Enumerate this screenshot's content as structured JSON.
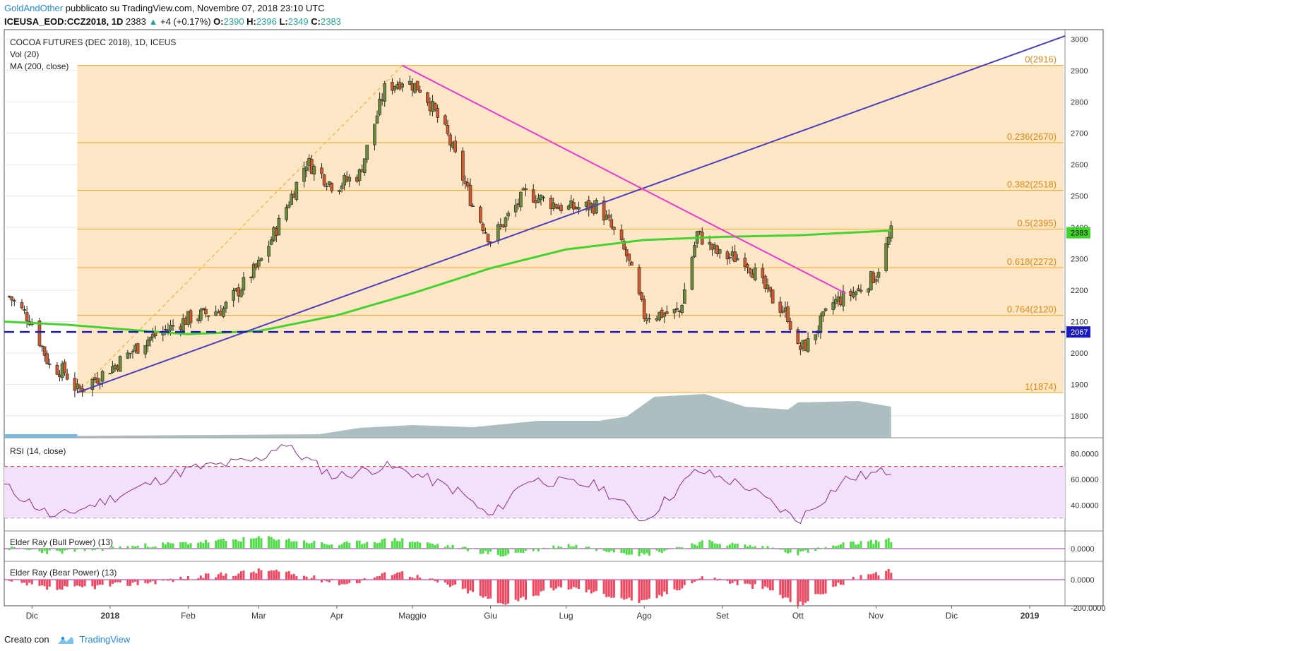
{
  "header": {
    "author": "GoldAndOther",
    "published_text": "pubblicato su TradingView.com, Novembre 07, 2018 23:10 UTC",
    "ticker": "ICEUSA_EOD:CCZ2018, 1D",
    "last": "2383",
    "change": "+4 (+0.17%)",
    "ohlc": {
      "o": "2390",
      "h": "2396",
      "l": "2349",
      "c": "2383"
    },
    "ohlc_labels": {
      "o": "O:",
      "h": "H:",
      "l": "L:",
      "c": "C:"
    }
  },
  "legend": {
    "title": "COCOA FUTURES (DEC 2018), 1D, ICEUS",
    "vol": "Vol (20)",
    "ma": "MA (200, close)"
  },
  "price_axis": {
    "ticks": [
      "3000",
      "2900",
      "2800",
      "2700",
      "2600",
      "2500",
      "2400",
      "2300",
      "2200",
      "2100",
      "2000",
      "1900",
      "1800"
    ],
    "last_tag": "2383",
    "support_tag": "2067"
  },
  "fibonacci": [
    {
      "label": "0(2916)",
      "value": 2916
    },
    {
      "label": "0.236(2670)",
      "value": 2670
    },
    {
      "label": "0.382(2518)",
      "value": 2518
    },
    {
      "label": "0.5(2395)",
      "value": 2395
    },
    {
      "label": "0.618(2272)",
      "value": 2272
    },
    {
      "label": "0.764(2120)",
      "value": 2120
    },
    {
      "label": "1(1874)",
      "value": 1874
    }
  ],
  "rsi_panel": {
    "title": "RSI (14, close)",
    "ticks": [
      "80.0000",
      "60.0000",
      "40.0000"
    ]
  },
  "bull_panel": {
    "title": "Elder Ray (Bull Power) (13)",
    "ticks": [
      "0.0000"
    ]
  },
  "bear_panel": {
    "title": "Elder Ray (Bear Power) (13)",
    "ticks": [
      "0.0000",
      "-200.0000"
    ]
  },
  "time_axis": {
    "labels": [
      "Dic",
      "2018",
      "Feb",
      "Mar",
      "Apr",
      "Maggio",
      "Giu",
      "Lug",
      "Ago",
      "Set",
      "Ott",
      "Nov",
      "Dic",
      "2019"
    ]
  },
  "footer": {
    "created_with": "Creato con",
    "brand": "TradingView"
  },
  "colors": {
    "fib_fill": "#fde3c0",
    "fib_line": "#f5a623",
    "ma_line": "#43d32f",
    "trend_up": "#4b3fbf",
    "trend_down": "#ee37d6",
    "support": "#1a1abf",
    "candle_up": "#6b8c3a",
    "candle_down": "#d2592c",
    "volume": "#9fb3b5",
    "rsi_line": "#8a2d8a",
    "rsi_band": "#f3e1fb",
    "bull_bar": "#4ddc45",
    "bear_bar": "#f2455e"
  },
  "chart_data": {
    "type": "candlestick",
    "title": "COCOA FUTURES (DEC 2018), 1D, ICEUS",
    "ylim": [
      1730,
      3030
    ],
    "x_range": [
      "2017-11-20",
      "2019-01-15"
    ],
    "support_level": 2067,
    "close_series_anchors": [
      [
        "2017-11-22",
        2180
      ],
      [
        "2017-12-01",
        2100
      ],
      [
        "2017-12-08",
        1960
      ],
      [
        "2017-12-14",
        1940
      ],
      [
        "2017-12-19",
        1880
      ],
      [
        "2018-01-02",
        1955
      ],
      [
        "2018-01-15",
        2040
      ],
      [
        "2018-02-01",
        2110
      ],
      [
        "2018-02-15",
        2140
      ],
      [
        "2018-03-01",
        2280
      ],
      [
        "2018-03-10",
        2430
      ],
      [
        "2018-03-20",
        2610
      ],
      [
        "2018-03-31",
        2530
      ],
      [
        "2018-04-10",
        2570
      ],
      [
        "2018-04-20",
        2840
      ],
      [
        "2018-04-27",
        2870
      ],
      [
        "2018-05-05",
        2840
      ],
      [
        "2018-05-15",
        2690
      ],
      [
        "2018-05-25",
        2470
      ],
      [
        "2018-06-01",
        2360
      ],
      [
        "2018-06-15",
        2510
      ],
      [
        "2018-07-01",
        2460
      ],
      [
        "2018-07-14",
        2470
      ],
      [
        "2018-07-25",
        2310
      ],
      [
        "2018-08-01",
        2120
      ],
      [
        "2018-08-15",
        2130
      ],
      [
        "2018-08-22",
        2380
      ],
      [
        "2018-08-31",
        2310
      ],
      [
        "2018-09-10",
        2300
      ],
      [
        "2018-09-20",
        2180
      ],
      [
        "2018-09-27",
        2120
      ],
      [
        "2018-10-01",
        2010
      ],
      [
        "2018-10-05",
        2030
      ],
      [
        "2018-10-15",
        2160
      ],
      [
        "2018-10-25",
        2200
      ],
      [
        "2018-11-01",
        2250
      ],
      [
        "2018-11-07",
        2383
      ]
    ],
    "ma200_anchors": [
      [
        "2017-11-20",
        2100
      ],
      [
        "2017-12-15",
        2090
      ],
      [
        "2018-01-15",
        2070
      ],
      [
        "2018-02-01",
        2060
      ],
      [
        "2018-03-01",
        2070
      ],
      [
        "2018-04-01",
        2120
      ],
      [
        "2018-05-01",
        2190
      ],
      [
        "2018-06-01",
        2270
      ],
      [
        "2018-07-01",
        2330
      ],
      [
        "2018-08-01",
        2360
      ],
      [
        "2018-09-01",
        2370
      ],
      [
        "2018-10-01",
        2375
      ],
      [
        "2018-11-07",
        2390
      ]
    ],
    "trendlines": [
      {
        "name": "",
        "from": [
          "2017-12-19",
          1874
        ],
        "to": [
          "2019-01-15",
          3010
        ]
      },
      {
        "name": "",
        "from": [
          "2018-04-27",
          2916
        ],
        "to": [
          "2018-10-20",
          2190
        ]
      }
    ],
    "rsi": {
      "ylim": [
        20,
        90
      ],
      "overbought": 70,
      "oversold": 30,
      "anchors": [
        [
          "2017-11-20",
          55
        ],
        [
          "2017-12-10",
          30
        ],
        [
          "2018-01-01",
          45
        ],
        [
          "2018-02-01",
          68
        ],
        [
          "2018-03-01",
          75
        ],
        [
          "2018-03-10",
          88
        ],
        [
          "2018-03-31",
          62
        ],
        [
          "2018-04-20",
          70
        ],
        [
          "2018-05-01",
          65
        ],
        [
          "2018-05-20",
          50
        ],
        [
          "2018-06-01",
          30
        ],
        [
          "2018-06-15",
          60
        ],
        [
          "2018-07-14",
          55
        ],
        [
          "2018-08-01",
          28
        ],
        [
          "2018-08-22",
          67
        ],
        [
          "2018-09-10",
          55
        ],
        [
          "2018-10-01",
          28
        ],
        [
          "2018-10-20",
          60
        ],
        [
          "2018-11-07",
          67
        ]
      ]
    },
    "bull_power": {
      "anchors": [
        [
          "2017-11-20",
          5
        ],
        [
          "2017-12-10",
          -25
        ],
        [
          "2018-01-15",
          20
        ],
        [
          "2018-03-05",
          70
        ],
        [
          "2018-03-31",
          25
        ],
        [
          "2018-04-25",
          60
        ],
        [
          "2018-05-20",
          5
        ],
        [
          "2018-06-05",
          -45
        ],
        [
          "2018-07-01",
          25
        ],
        [
          "2018-08-01",
          -40
        ],
        [
          "2018-08-25",
          45
        ],
        [
          "2018-09-20",
          5
        ],
        [
          "2018-10-01",
          -30
        ],
        [
          "2018-10-20",
          30
        ],
        [
          "2018-11-07",
          55
        ]
      ]
    },
    "bear_power": {
      "ylim": [
        -250,
        110
      ],
      "anchors": [
        [
          "2017-11-20",
          -10
        ],
        [
          "2017-12-10",
          -70
        ],
        [
          "2018-01-15",
          -20
        ],
        [
          "2018-03-05",
          70
        ],
        [
          "2018-03-20",
          20
        ],
        [
          "2018-04-05",
          -30
        ],
        [
          "2018-04-25",
          60
        ],
        [
          "2018-05-20",
          -60
        ],
        [
          "2018-06-05",
          -170
        ],
        [
          "2018-07-01",
          -50
        ],
        [
          "2018-08-01",
          -160
        ],
        [
          "2018-08-25",
          20
        ],
        [
          "2018-09-20",
          -70
        ],
        [
          "2018-10-01",
          -180
        ],
        [
          "2018-10-20",
          -10
        ],
        [
          "2018-11-07",
          60
        ]
      ]
    }
  }
}
